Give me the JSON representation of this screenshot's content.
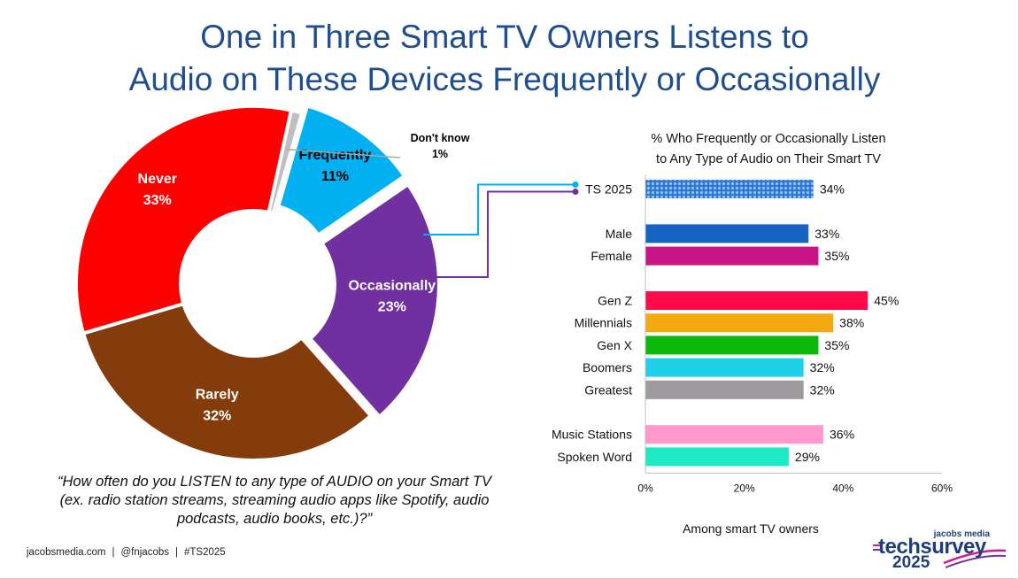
{
  "title": {
    "line1": "One in Three Smart TV Owners Listens to",
    "line2": "Audio on These Devices Frequently or Occasionally"
  },
  "question": "“How often do you LISTEN to any type of AUDIO on your Smart TV (ex. radio station streams, streaming audio apps like Spotify, audio podcasts, audio books, etc.)?”",
  "footer": {
    "site": "jacobsmedia.com",
    "handle": "@fnjacobs",
    "hashtag": "#TS2025"
  },
  "logo": {
    "brand": "jacobs media",
    "product": "techsurvey",
    "year": "2025"
  },
  "chart_data": [
    {
      "type": "pie",
      "title": "",
      "slices": [
        {
          "label": "Frequently",
          "value": 11,
          "display": "11%",
          "color": "#00b0f0"
        },
        {
          "label": "Occasionally",
          "value": 23,
          "display": "23%",
          "color": "#7030a0"
        },
        {
          "label": "Rarely",
          "value": 32,
          "display": "32%",
          "color": "#843c0c"
        },
        {
          "label": "Never",
          "value": 33,
          "display": "33%",
          "color": "#ff0000"
        },
        {
          "label": "Don't know",
          "value": 1,
          "display": "1%",
          "color": "#bfbfbf"
        }
      ]
    },
    {
      "type": "bar",
      "orientation": "horizontal",
      "title": "% Who Frequently or Occasionally Listen to Any Type of Audio on Their Smart TV",
      "xlabel": "Among smart TV owners",
      "xlim": [
        0,
        60
      ],
      "xticks": [
        "0%",
        "20%",
        "40%",
        "60%"
      ],
      "grid": false,
      "bars": [
        {
          "label": "TS 2025",
          "value": 34,
          "display": "34%",
          "color": "#2e75d6",
          "pattern": true,
          "group": 0
        },
        {
          "label": "Male",
          "value": 33,
          "display": "33%",
          "color": "#1565c0",
          "group": 1
        },
        {
          "label": "Female",
          "value": 35,
          "display": "35%",
          "color": "#c71585",
          "group": 1
        },
        {
          "label": "Gen Z",
          "value": 45,
          "display": "45%",
          "color": "#ff0a4a",
          "group": 2
        },
        {
          "label": "Millennials",
          "value": 38,
          "display": "38%",
          "color": "#f4a911",
          "group": 2
        },
        {
          "label": "Gen X",
          "value": 35,
          "display": "35%",
          "color": "#0cb80c",
          "group": 2
        },
        {
          "label": "Boomers",
          "value": 32,
          "display": "32%",
          "color": "#1fd0e8",
          "group": 2
        },
        {
          "label": "Greatest",
          "value": 32,
          "display": "32%",
          "color": "#9e9a9e",
          "group": 2
        },
        {
          "label": "Music Stations",
          "value": 36,
          "display": "36%",
          "color": "#ff99cc",
          "group": 3
        },
        {
          "label": "Spoken Word",
          "value": 29,
          "display": "29%",
          "color": "#1de9c5",
          "group": 3
        }
      ]
    }
  ]
}
